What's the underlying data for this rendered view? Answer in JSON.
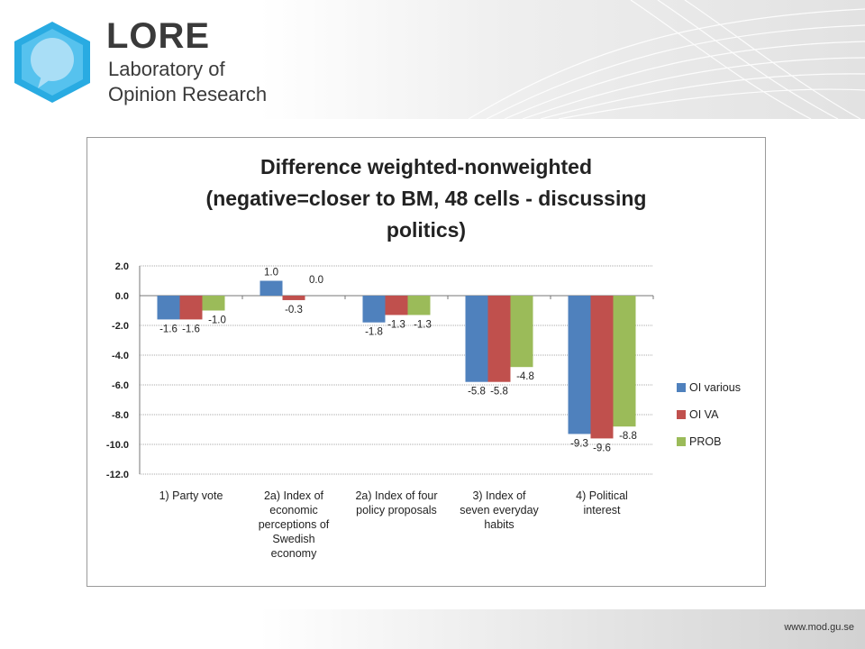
{
  "header": {
    "logo_title": "LORE",
    "logo_line1": "Laboratory of",
    "logo_line2": "Opinion Research"
  },
  "footer": {
    "url": "www.mod.gu.se"
  },
  "colors": {
    "series": [
      "#4f81bd",
      "#c0504d",
      "#9bbb59"
    ],
    "brand": "#29abe2"
  },
  "chart_data": {
    "type": "bar",
    "title": [
      "Difference weighted-nonweighted",
      "(negative=closer to BM, 48 cells - discussing",
      "politics)"
    ],
    "categories": [
      [
        "1) Party vote"
      ],
      [
        "2a) Index of",
        "economic",
        "perceptions of",
        "Swedish",
        "economy"
      ],
      [
        "2a) Index of four",
        "policy proposals"
      ],
      [
        "3) Index of",
        "seven everyday",
        "habits"
      ],
      [
        "4) Political",
        "interest"
      ]
    ],
    "series": [
      {
        "name": "OI various",
        "values": [
          -1.6,
          1.0,
          -1.8,
          -5.8,
          -9.3
        ],
        "labels": [
          "-1.6",
          "1.0",
          "-1.8",
          "-5.8",
          "-9.3"
        ]
      },
      {
        "name": "OI VA",
        "values": [
          -1.6,
          -0.3,
          -1.3,
          -5.8,
          -9.6
        ],
        "labels": [
          "-1.6",
          "-0.3",
          "-1.3",
          "-5.8",
          "-9.6"
        ]
      },
      {
        "name": "PROB",
        "values": [
          -1.0,
          0.0,
          -1.3,
          -4.8,
          -8.8
        ],
        "labels": [
          "-1.0",
          "0.0",
          "-1.3",
          "-4.8",
          "-8.8"
        ]
      }
    ],
    "ylim": [
      -12,
      2
    ],
    "yticks": [
      "2.0",
      "0.0",
      "-2.0",
      "-4.0",
      "-6.0",
      "-8.0",
      "-10.0",
      "-12.0"
    ],
    "grid": true,
    "legend_position": "right"
  }
}
